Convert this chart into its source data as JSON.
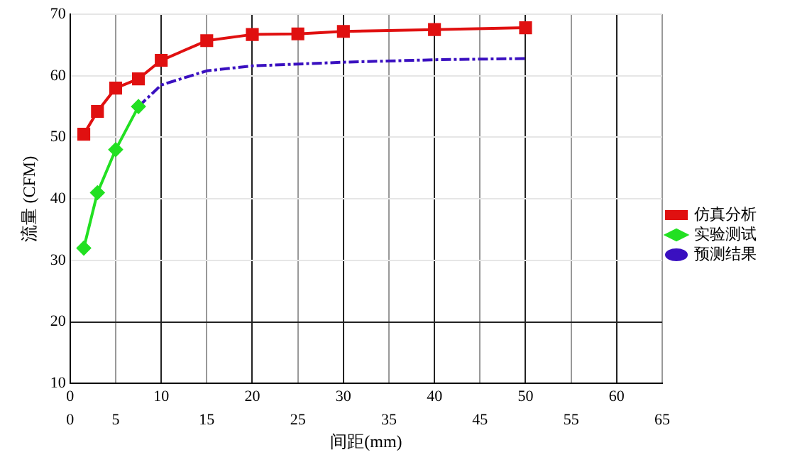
{
  "chart_data": {
    "type": "line",
    "xlabel": "间距(mm)",
    "ylabel": "流量 (CFM)",
    "xlim": [
      0,
      65
    ],
    "xticks": [
      0,
      10,
      20,
      30,
      40,
      50,
      60
    ],
    "x2lim": [
      0,
      65
    ],
    "x2ticks": [
      0,
      5,
      15,
      25,
      35,
      45,
      55,
      65
    ],
    "ylim": [
      10,
      70
    ],
    "yticks": [
      10,
      20,
      30,
      40,
      50,
      60,
      70
    ],
    "grid": true,
    "legend": "right",
    "series": [
      {
        "name": "仿真分析",
        "color": "#e01010",
        "marker": "square",
        "line_style": "solid",
        "x": [
          1.5,
          3,
          5,
          7.5,
          10,
          15,
          20,
          25,
          30,
          40,
          50
        ],
        "values": [
          50.5,
          54.2,
          58,
          59.5,
          62.5,
          65.7,
          66.7,
          66.8,
          67.2,
          67.5,
          67.8
        ]
      },
      {
        "name": "实验测试",
        "color": "#22e022",
        "marker": "diamond",
        "line_style": "solid",
        "x": [
          1.5,
          3,
          5,
          7.5
        ],
        "values": [
          32,
          41,
          48,
          55
        ]
      },
      {
        "name": "预测结果",
        "color": "#3a10c0",
        "marker": "none",
        "line_style": "dashed",
        "x": [
          7.5,
          10,
          15,
          20,
          30,
          40,
          50
        ],
        "values": [
          55,
          58.5,
          60.8,
          61.6,
          62.2,
          62.6,
          62.8
        ]
      }
    ]
  }
}
